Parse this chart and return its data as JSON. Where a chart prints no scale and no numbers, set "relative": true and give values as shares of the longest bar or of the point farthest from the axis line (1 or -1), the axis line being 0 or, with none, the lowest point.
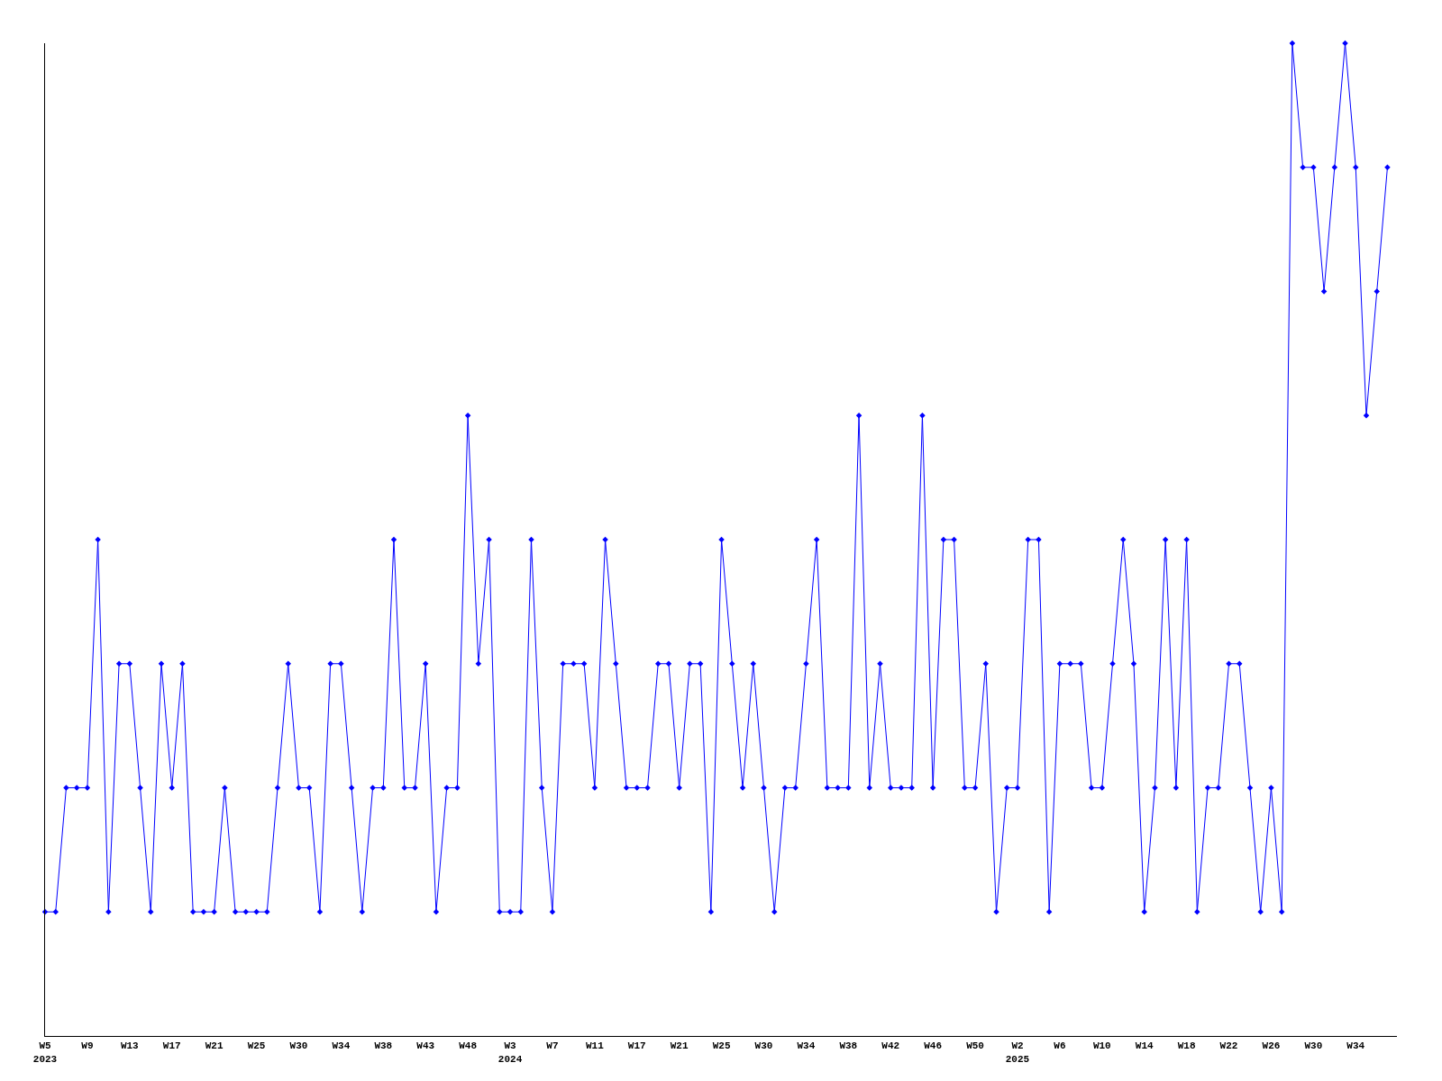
{
  "chart_data": {
    "type": "line",
    "relative": true,
    "marker": "diamond",
    "line_style": "solid",
    "categories": [
      "W5\n2023",
      null,
      null,
      null,
      "W9",
      null,
      null,
      null,
      "W13",
      null,
      null,
      null,
      "W17",
      null,
      null,
      null,
      "W21",
      null,
      null,
      null,
      "W25",
      null,
      null,
      null,
      "W30",
      null,
      null,
      null,
      "W34",
      null,
      null,
      null,
      "W38",
      null,
      null,
      null,
      "W43",
      null,
      null,
      null,
      "W48",
      null,
      null,
      null,
      "W3\n2024",
      null,
      null,
      null,
      "W7",
      null,
      null,
      null,
      "W11",
      null,
      null,
      null,
      "W17",
      null,
      null,
      null,
      "W21",
      null,
      null,
      null,
      "W25",
      null,
      null,
      null,
      "W30",
      null,
      null,
      null,
      "W34",
      null,
      null,
      null,
      "W38",
      null,
      null,
      null,
      "W42",
      null,
      null,
      null,
      "W46",
      null,
      null,
      null,
      "W50",
      null,
      null,
      null,
      "W2\n2025",
      null,
      null,
      null,
      "W6",
      null,
      null,
      null,
      "W10",
      null,
      null,
      null,
      "W14",
      null,
      null,
      null,
      "W18",
      null,
      null,
      null,
      "W22",
      null,
      null,
      null,
      "W26",
      null,
      null,
      null,
      "W30",
      null,
      null,
      null,
      "W34",
      null,
      null,
      null
    ],
    "series": [
      {
        "color": "#0000ff",
        "values": [
          0.125,
          0.125,
          0.25,
          0.25,
          0.25,
          0.5,
          0.125,
          0.375,
          0.375,
          0.25,
          0.125,
          0.375,
          0.25,
          0.375,
          0.125,
          0.125,
          0.125,
          0.25,
          0.125,
          0.125,
          0.125,
          0.125,
          0.25,
          0.375,
          0.25,
          0.25,
          0.125,
          0.375,
          0.375,
          0.25,
          0.125,
          0.25,
          0.25,
          0.5,
          0.25,
          0.25,
          0.375,
          0.125,
          0.25,
          0.25,
          0.625,
          0.375,
          0.5,
          0.125,
          0.125,
          0.125,
          0.5,
          0.25,
          0.125,
          0.375,
          0.375,
          0.375,
          0.25,
          0.5,
          0.375,
          0.25,
          0.25,
          0.25,
          0.375,
          0.375,
          0.25,
          0.375,
          0.375,
          0.125,
          0.5,
          0.375,
          0.25,
          0.375,
          0.25,
          0.125,
          0.25,
          0.25,
          0.375,
          0.5,
          0.25,
          0.25,
          0.25,
          0.625,
          0.25,
          0.375,
          0.25,
          0.25,
          0.25,
          0.625,
          0.25,
          0.5,
          0.5,
          0.25,
          0.25,
          0.375,
          0.125,
          0.25,
          0.25,
          0.5,
          0.5,
          0.125,
          0.375,
          0.375,
          0.375,
          0.25,
          0.25,
          0.375,
          0.5,
          0.375,
          0.125,
          0.25,
          0.5,
          0.25,
          0.5,
          0.125,
          0.25,
          0.25,
          0.375,
          0.375,
          0.25,
          0.125,
          0.25,
          0.125,
          1,
          0.875,
          0.875,
          0.75,
          0.875,
          1,
          0.875,
          0.625,
          0.75,
          0.875
        ]
      }
    ]
  }
}
